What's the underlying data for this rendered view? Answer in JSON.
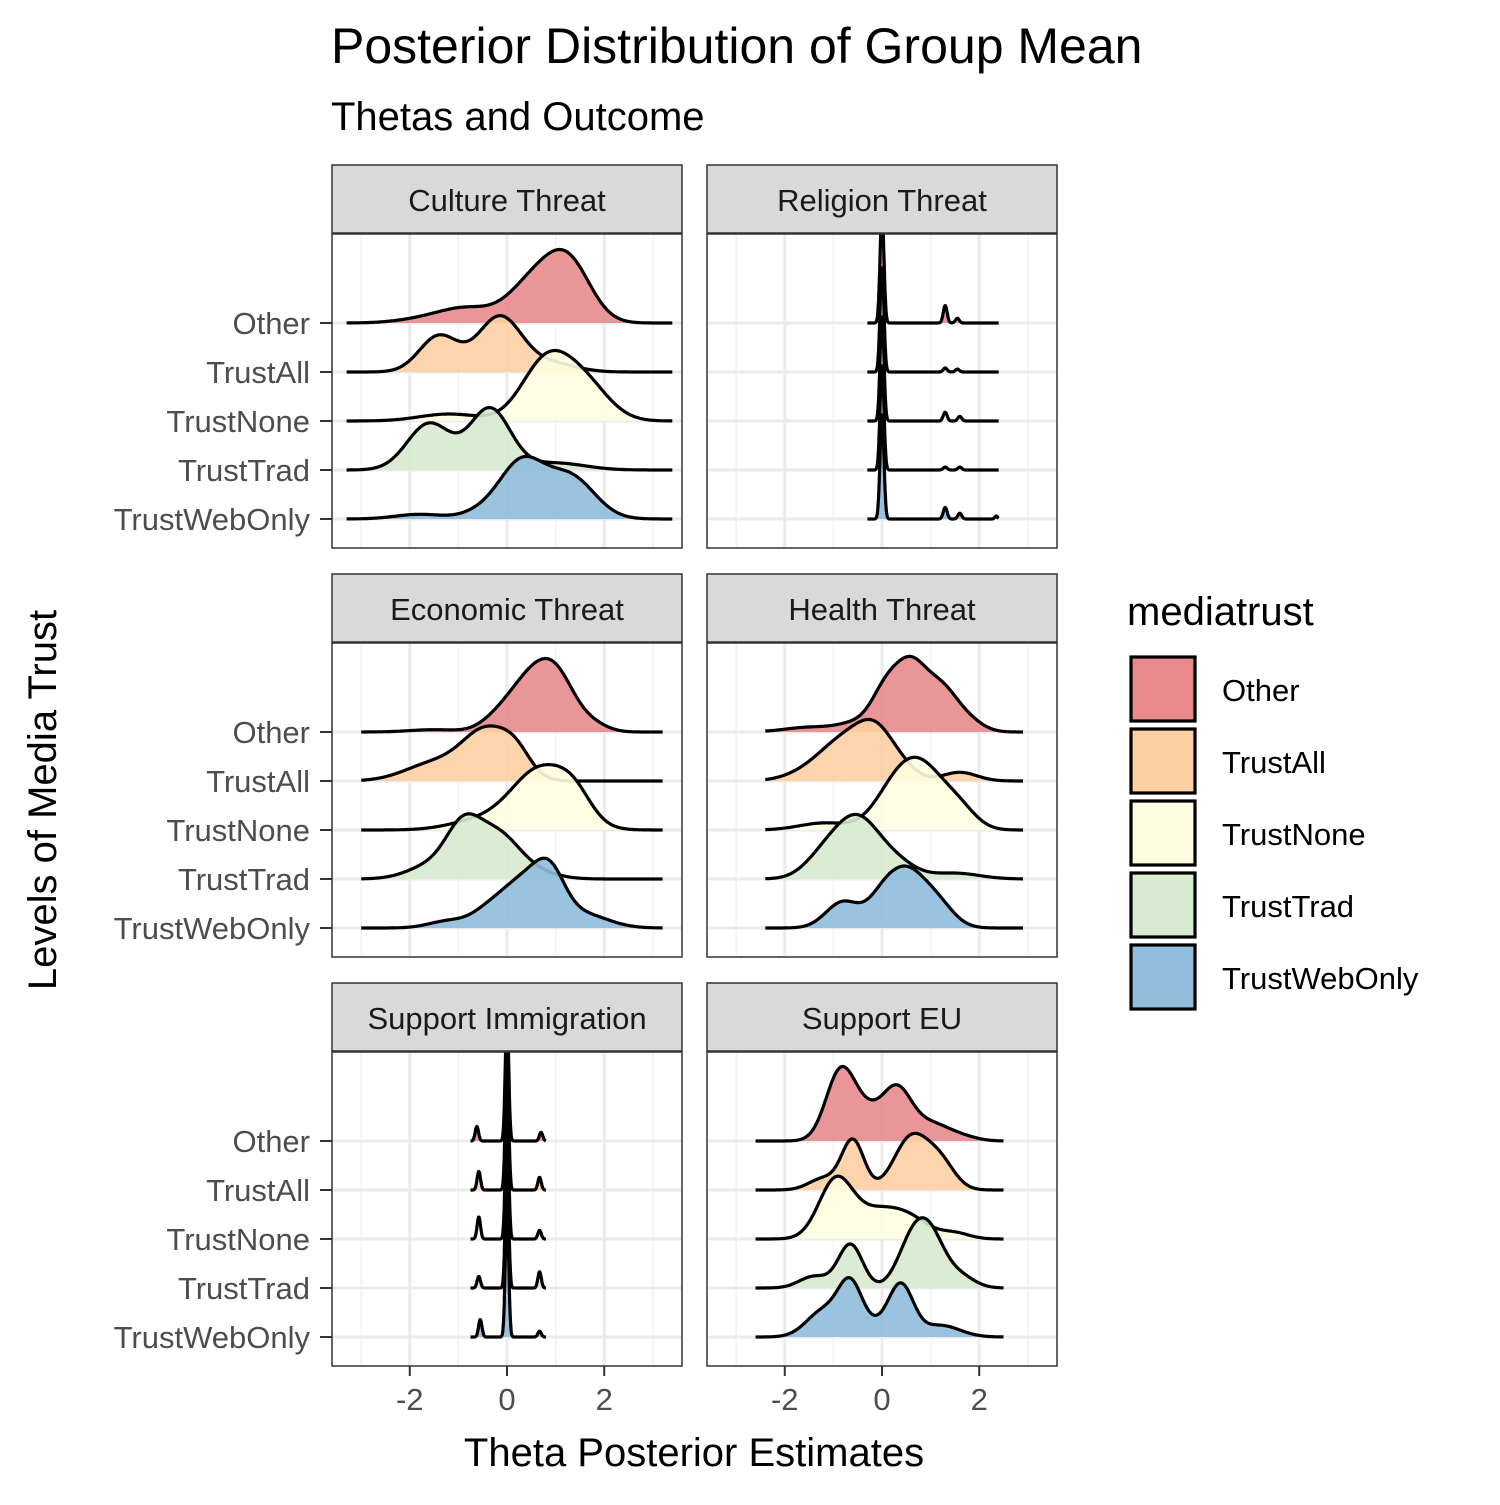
{
  "chart_data": {
    "type": "ridgeline",
    "title": "Posterior Distribution of Group Mean",
    "subtitle": "Thetas and Outcome",
    "xlabel": "Theta Posterior Estimates",
    "ylabel": "Levels of Media Trust",
    "xlim": [
      -3.6,
      3.6
    ],
    "x_ticks": [
      -2,
      0,
      2
    ],
    "x_tick_labels": [
      "-2",
      "0",
      "2"
    ],
    "grid": true,
    "legend": {
      "title": "mediatrust",
      "position": "right",
      "items": [
        {
          "label": "Other",
          "color": "#e88a8c"
        },
        {
          "label": "TrustAll",
          "color": "#fdcfa3"
        },
        {
          "label": "TrustNone",
          "color": "#fffde0"
        },
        {
          "label": "TrustTrad",
          "color": "#d6ebcf"
        },
        {
          "label": "TrustWebOnly",
          "color": "#8fbddb"
        }
      ]
    },
    "categories": [
      "Other",
      "TrustAll",
      "TrustNone",
      "TrustTrad",
      "TrustWebOnly"
    ],
    "panels": [
      {
        "name": "Culture Threat",
        "range": [
          -3.3,
          3.4
        ],
        "series": [
          {
            "name": "Other",
            "peaks": [
              [
                -1.5,
                0.6,
                0.1
              ],
              [
                -0.8,
                0.5,
                0.2
              ],
              [
                0.6,
                0.55,
                0.75
              ],
              [
                1.3,
                0.45,
                0.85
              ]
            ]
          },
          {
            "name": "TrustAll",
            "peaks": [
              [
                -1.4,
                0.4,
                0.62
              ],
              [
                -0.15,
                0.45,
                0.95
              ],
              [
                0.9,
                0.5,
                0.15
              ]
            ]
          },
          {
            "name": "TrustNone",
            "peaks": [
              [
                -1.2,
                0.6,
                0.12
              ],
              [
                0.8,
                0.5,
                1.0
              ],
              [
                1.6,
                0.5,
                0.6
              ]
            ]
          },
          {
            "name": "TrustTrad",
            "peaks": [
              [
                -1.6,
                0.45,
                0.8
              ],
              [
                -0.35,
                0.42,
                1.05
              ],
              [
                1.0,
                0.6,
                0.12
              ]
            ]
          },
          {
            "name": "TrustWebOnly",
            "peaks": [
              [
                -1.8,
                0.5,
                0.08
              ],
              [
                -0.5,
                0.4,
                0.12
              ],
              [
                0.3,
                0.45,
                0.95
              ],
              [
                1.3,
                0.5,
                0.72
              ]
            ]
          }
        ]
      },
      {
        "name": "Religion Threat",
        "range": [
          -0.3,
          2.4
        ],
        "series": [
          {
            "name": "Other",
            "peaks": [
              [
                0.0,
                0.04,
                1.9
              ],
              [
                1.3,
                0.04,
                0.3
              ],
              [
                1.55,
                0.04,
                0.08
              ]
            ]
          },
          {
            "name": "TrustAll",
            "peaks": [
              [
                0.0,
                0.04,
                1.8
              ],
              [
                1.3,
                0.04,
                0.07
              ],
              [
                1.55,
                0.04,
                0.05
              ]
            ]
          },
          {
            "name": "TrustNone",
            "peaks": [
              [
                0.0,
                0.04,
                1.8
              ],
              [
                1.3,
                0.04,
                0.15
              ],
              [
                1.6,
                0.04,
                0.08
              ]
            ]
          },
          {
            "name": "TrustTrad",
            "peaks": [
              [
                0.0,
                0.04,
                1.8
              ],
              [
                1.3,
                0.04,
                0.05
              ],
              [
                1.6,
                0.04,
                0.05
              ]
            ]
          },
          {
            "name": "TrustWebOnly",
            "peaks": [
              [
                0.0,
                0.04,
                1.8
              ],
              [
                1.3,
                0.04,
                0.2
              ],
              [
                1.6,
                0.04,
                0.1
              ],
              [
                2.35,
                0.03,
                0.05
              ]
            ]
          }
        ]
      },
      {
        "name": "Economic Threat",
        "range": [
          -3.0,
          3.2
        ],
        "series": [
          {
            "name": "Other",
            "peaks": [
              [
                -1.5,
                0.5,
                0.04
              ],
              [
                -0.2,
                0.35,
                0.2
              ],
              [
                0.4,
                0.4,
                0.7
              ],
              [
                1.0,
                0.4,
                0.95
              ],
              [
                1.8,
                0.3,
                0.1
              ]
            ]
          },
          {
            "name": "TrustAll",
            "peaks": [
              [
                -1.5,
                0.6,
                0.3
              ],
              [
                -0.4,
                0.5,
                0.85
              ],
              [
                0.2,
                0.3,
                0.3
              ]
            ]
          },
          {
            "name": "TrustNone",
            "peaks": [
              [
                -0.6,
                0.6,
                0.15
              ],
              [
                0.7,
                0.6,
                1.05
              ],
              [
                1.4,
                0.35,
                0.35
              ]
            ]
          },
          {
            "name": "TrustTrad",
            "peaks": [
              [
                -1.5,
                0.5,
                0.25
              ],
              [
                -0.9,
                0.35,
                0.75
              ],
              [
                -0.2,
                0.45,
                0.75
              ],
              [
                0.6,
                0.45,
                0.1
              ]
            ]
          },
          {
            "name": "TrustWebOnly",
            "peaks": [
              [
                -1.2,
                0.4,
                0.12
              ],
              [
                -0.4,
                0.35,
                0.2
              ],
              [
                0.4,
                0.5,
                0.85
              ],
              [
                0.9,
                0.3,
                0.55
              ],
              [
                1.6,
                0.5,
                0.22
              ]
            ]
          }
        ]
      },
      {
        "name": "Health Threat",
        "range": [
          -2.4,
          2.9
        ],
        "series": [
          {
            "name": "Other",
            "peaks": [
              [
                -1.5,
                0.5,
                0.08
              ],
              [
                -0.5,
                0.4,
                0.15
              ],
              [
                0.1,
                0.3,
                0.7
              ],
              [
                0.6,
                0.3,
                0.95
              ],
              [
                1.2,
                0.35,
                0.75
              ],
              [
                1.8,
                0.3,
                0.15
              ]
            ]
          },
          {
            "name": "TrustAll",
            "peaks": [
              [
                -1.6,
                0.45,
                0.1
              ],
              [
                -0.8,
                0.5,
                0.65
              ],
              [
                -0.1,
                0.4,
                0.75
              ],
              [
                0.5,
                0.3,
                0.1
              ],
              [
                1.6,
                0.35,
                0.15
              ]
            ]
          },
          {
            "name": "TrustNone",
            "peaks": [
              [
                -1.2,
                0.5,
                0.12
              ],
              [
                0.3,
                0.45,
                0.7
              ],
              [
                0.9,
                0.45,
                0.85
              ],
              [
                1.6,
                0.35,
                0.3
              ]
            ]
          },
          {
            "name": "TrustTrad",
            "peaks": [
              [
                -1.2,
                0.4,
                0.35
              ],
              [
                -0.5,
                0.45,
                1.0
              ],
              [
                0.3,
                0.4,
                0.25
              ],
              [
                1.5,
                0.5,
                0.1
              ]
            ]
          },
          {
            "name": "TrustWebOnly",
            "peaks": [
              [
                -0.8,
                0.35,
                0.45
              ],
              [
                0.0,
                0.3,
                0.45
              ],
              [
                0.5,
                0.35,
                0.85
              ],
              [
                1.1,
                0.35,
                0.45
              ]
            ]
          }
        ]
      },
      {
        "name": "Support Immigration",
        "range": [
          -0.75,
          0.8
        ],
        "series": [
          {
            "name": "Other",
            "peaks": [
              [
                -0.62,
                0.035,
                0.25
              ],
              [
                0.0,
                0.035,
                2.2
              ],
              [
                0.7,
                0.035,
                0.15
              ]
            ]
          },
          {
            "name": "TrustAll",
            "peaks": [
              [
                -0.58,
                0.035,
                0.32
              ],
              [
                0.0,
                0.035,
                2.2
              ],
              [
                0.67,
                0.035,
                0.22
              ]
            ]
          },
          {
            "name": "TrustNone",
            "peaks": [
              [
                -0.58,
                0.035,
                0.38
              ],
              [
                0.0,
                0.035,
                2.2
              ],
              [
                0.67,
                0.035,
                0.15
              ]
            ]
          },
          {
            "name": "TrustTrad",
            "peaks": [
              [
                -0.58,
                0.035,
                0.2
              ],
              [
                0.0,
                0.035,
                2.2
              ],
              [
                0.67,
                0.035,
                0.28
              ]
            ]
          },
          {
            "name": "TrustWebOnly",
            "peaks": [
              [
                -0.55,
                0.035,
                0.3
              ],
              [
                0.0,
                0.035,
                2.2
              ],
              [
                0.67,
                0.035,
                0.1
              ]
            ]
          }
        ]
      },
      {
        "name": "Support EU",
        "range": [
          -2.6,
          2.5
        ],
        "series": [
          {
            "name": "Other",
            "peaks": [
              [
                -0.85,
                0.3,
                1.2
              ],
              [
                -0.3,
                0.3,
                0.4
              ],
              [
                0.3,
                0.3,
                0.85
              ],
              [
                1.0,
                0.4,
                0.3
              ],
              [
                1.7,
                0.3,
                0.05
              ]
            ]
          },
          {
            "name": "TrustAll",
            "peaks": [
              [
                -1.2,
                0.3,
                0.2
              ],
              [
                -0.6,
                0.23,
                0.85
              ],
              [
                0.6,
                0.35,
                0.9
              ],
              [
                1.2,
                0.3,
                0.45
              ]
            ]
          },
          {
            "name": "TrustNone",
            "peaks": [
              [
                -0.95,
                0.35,
                1.0
              ],
              [
                -0.1,
                0.45,
                0.45
              ],
              [
                0.6,
                0.4,
                0.3
              ],
              [
                1.5,
                0.3,
                0.1
              ]
            ]
          },
          {
            "name": "TrustTrad",
            "peaks": [
              [
                -1.4,
                0.3,
                0.2
              ],
              [
                -0.65,
                0.25,
                0.75
              ],
              [
                0.6,
                0.3,
                0.7
              ],
              [
                1.0,
                0.3,
                0.8
              ],
              [
                1.6,
                0.3,
                0.2
              ]
            ]
          },
          {
            "name": "TrustWebOnly",
            "peaks": [
              [
                -1.2,
                0.35,
                0.45
              ],
              [
                -0.65,
                0.25,
                0.85
              ],
              [
                0.4,
                0.25,
                0.8
              ],
              [
                0.0,
                0.35,
                0.2
              ],
              [
                1.2,
                0.4,
                0.2
              ]
            ]
          }
        ]
      }
    ]
  }
}
